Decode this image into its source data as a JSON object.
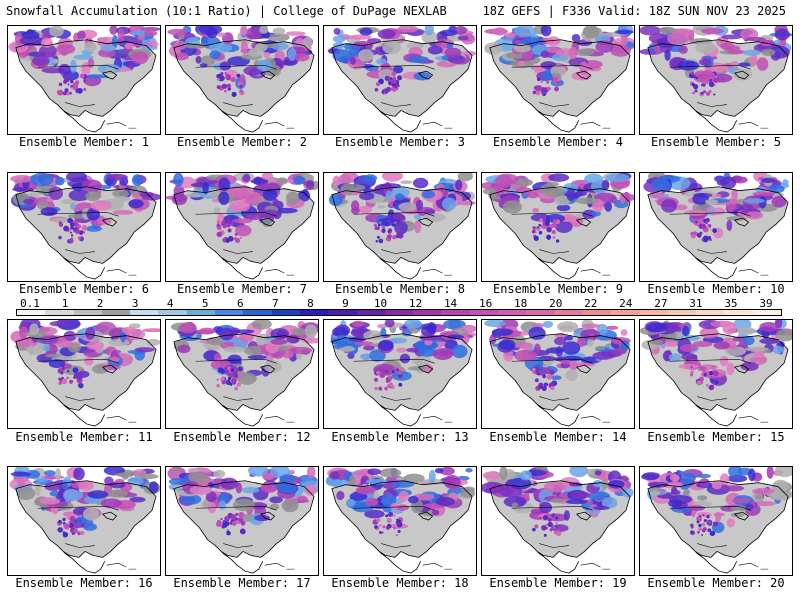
{
  "header": {
    "left_title": "Snowfall Accumulation (10:1 Ratio) | College of DuPage NEXLAB",
    "right_title": "18Z GEFS | F336 Valid: 18Z SUN NOV 23 2025"
  },
  "panels": [
    {
      "label": "Ensemble Member: 1"
    },
    {
      "label": "Ensemble Member: 2"
    },
    {
      "label": "Ensemble Member: 3"
    },
    {
      "label": "Ensemble Member: 4"
    },
    {
      "label": "Ensemble Member: 5"
    },
    {
      "label": "Ensemble Member: 6"
    },
    {
      "label": "Ensemble Member: 7"
    },
    {
      "label": "Ensemble Member: 8"
    },
    {
      "label": "Ensemble Member: 9"
    },
    {
      "label": "Ensemble Member: 10"
    },
    {
      "label": "Ensemble Member: 11"
    },
    {
      "label": "Ensemble Member: 12"
    },
    {
      "label": "Ensemble Member: 13"
    },
    {
      "label": "Ensemble Member: 14"
    },
    {
      "label": "Ensemble Member: 15"
    },
    {
      "label": "Ensemble Member: 16"
    },
    {
      "label": "Ensemble Member: 17"
    },
    {
      "label": "Ensemble Member: 18"
    },
    {
      "label": "Ensemble Member: 19"
    },
    {
      "label": "Ensemble Member: 20"
    }
  ],
  "colorbar": {
    "labels": [
      "0.1",
      "1",
      "2",
      "3",
      "4",
      "5",
      "6",
      "7",
      "8",
      "9",
      "10",
      "12",
      "14",
      "16",
      "18",
      "20",
      "22",
      "24",
      "27",
      "31",
      "35",
      "39"
    ],
    "colors": [
      "#f4f4f4",
      "#d9d9d9",
      "#bdbdbd",
      "#9e9e9e",
      "#c6dbf5",
      "#9ecae9",
      "#6baed6",
      "#4a86e8",
      "#2f5fd9",
      "#1c3fc4",
      "#2a1fb8",
      "#4a1fb0",
      "#6a22a8",
      "#8a2aa6",
      "#a236a8",
      "#b844b0",
      "#c94fb8",
      "#d65ab9",
      "#e06aa8",
      "#e77c9a",
      "#ee8f8f",
      "#f3a48f",
      "#f6b7a0",
      "#f8c9b2",
      "#fad8c4",
      "#fde4d4",
      "#fff0e6"
    ]
  }
}
